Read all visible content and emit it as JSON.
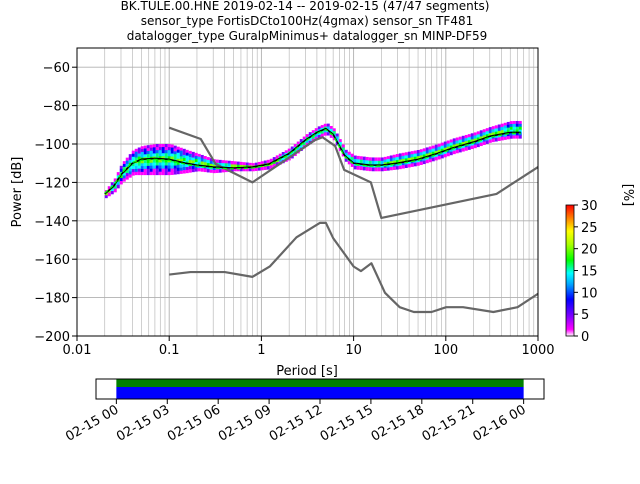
{
  "chart_data": {
    "type": "heatmap",
    "title_lines": [
      "BK.TULE.00.HNE   2019-02-14 -- 2019-02-15  (47/47 segments)",
      "sensor_type FortisDCto100Hz(4gmax) sensor_sn TF481",
      "datalogger_type GuralpMinimus+ datalogger_sn MINP-DF59"
    ],
    "xlabel": "Period [s]",
    "ylabel": "Power [dB]",
    "xscale": "log",
    "xlim": [
      0.01,
      1000
    ],
    "ylim": [
      -200,
      -50
    ],
    "xticks": [
      {
        "value": 0.01,
        "label": "0.01"
      },
      {
        "value": 0.1,
        "label": "0.1"
      },
      {
        "value": 1,
        "label": "1"
      },
      {
        "value": 10,
        "label": "10"
      },
      {
        "value": 100,
        "label": "100"
      },
      {
        "value": 1000,
        "label": "1000"
      }
    ],
    "yticks": [
      {
        "value": -60,
        "label": "−60"
      },
      {
        "value": -80,
        "label": "−80"
      },
      {
        "value": -100,
        "label": "−100"
      },
      {
        "value": -120,
        "label": "−120"
      },
      {
        "value": -140,
        "label": "−140"
      },
      {
        "value": -160,
        "label": "−160"
      },
      {
        "value": -180,
        "label": "−180"
      },
      {
        "value": -200,
        "label": "−200"
      }
    ],
    "grid": true,
    "colorbar": {
      "label": "[%]",
      "min": 0,
      "max": 30,
      "ticks": [
        {
          "value": 0,
          "label": "0"
        },
        {
          "value": 5,
          "label": "5"
        },
        {
          "value": 10,
          "label": "10"
        },
        {
          "value": 15,
          "label": "15"
        },
        {
          "value": 20,
          "label": "20"
        },
        {
          "value": 25,
          "label": "25"
        },
        {
          "value": 30,
          "label": "30"
        }
      ]
    },
    "series": [
      {
        "style": "noise-model",
        "color": "#666666",
        "x": [
          0.1,
          0.22,
          0.32,
          0.8,
          3.8,
          4.6,
          6.3,
          7.9,
          15.4,
          20,
          354.8,
          1000
        ],
        "y": [
          -91.5,
          -97.4,
          -110.5,
          -120,
          -98,
          -96.5,
          -101,
          -113.5,
          -120,
          -138.5,
          -126,
          -112
        ]
      },
      {
        "style": "noise-model",
        "color": "#666666",
        "x": [
          0.1,
          0.17,
          0.4,
          0.8,
          1.24,
          2.4,
          4.3,
          5,
          6,
          10,
          12,
          15.6,
          21.9,
          31.6,
          45,
          70,
          101,
          154,
          328,
          600,
          1000
        ],
        "y": [
          -168,
          -166.7,
          -166.7,
          -169.2,
          -163.7,
          -148.6,
          -141.1,
          -141.1,
          -149,
          -163.8,
          -166.2,
          -162.1,
          -177.5,
          -185,
          -187.5,
          -187.5,
          -185,
          -185,
          -187.5,
          -185,
          -178
        ]
      },
      {
        "style": "median",
        "color": "#000000",
        "x": [
          0.02,
          0.025,
          0.03,
          0.04,
          0.05,
          0.07,
          0.1,
          0.15,
          0.2,
          0.3,
          0.5,
          0.8,
          1.2,
          2,
          3,
          4,
          5,
          6,
          7,
          8,
          10,
          15,
          20,
          30,
          50,
          80,
          120,
          200,
          300,
          500,
          650
        ],
        "y": [
          -126,
          -122,
          -116,
          -110,
          -108,
          -107.5,
          -108,
          -110,
          -111,
          -112,
          -112.5,
          -112,
          -110.5,
          -105,
          -98,
          -94,
          -92,
          -95,
          -101,
          -106,
          -110,
          -111,
          -111,
          -110,
          -108,
          -105,
          -102,
          -99,
          -96,
          -94,
          -94
        ]
      },
      {
        "style": "mean",
        "color": "#00ff00",
        "x": [
          0.02,
          0.025,
          0.03,
          0.04,
          0.05,
          0.07,
          0.1,
          0.15,
          0.2,
          0.3,
          0.5,
          0.8,
          1.2,
          2,
          3,
          4,
          5,
          6,
          7,
          8,
          10,
          15,
          20,
          30,
          50,
          80,
          120,
          200,
          300,
          500,
          650
        ],
        "y": [
          -125.5,
          -121.5,
          -115.5,
          -109.5,
          -108.5,
          -108,
          -108.5,
          -110.5,
          -111.5,
          -112.5,
          -113,
          -112.5,
          -111,
          -105.5,
          -98.5,
          -94.5,
          -92.5,
          -95.5,
          -101.5,
          -106.5,
          -110.5,
          -111.5,
          -111.5,
          -110.5,
          -108.5,
          -105.5,
          -102.5,
          -99.5,
          -96.5,
          -94.5,
          -94.5
        ]
      }
    ],
    "density_band": {
      "x": [
        0.02,
        0.025,
        0.03,
        0.04,
        0.05,
        0.07,
        0.1,
        0.15,
        0.2,
        0.3,
        0.5,
        0.8,
        1.2,
        2,
        3,
        4,
        5,
        6,
        7,
        8,
        10,
        15,
        20,
        30,
        50,
        80,
        120,
        200,
        300,
        500,
        650
      ],
      "low": [
        -128,
        -125,
        -120,
        -116,
        -116,
        -116,
        -116,
        -115,
        -114,
        -115,
        -114,
        -114,
        -113,
        -108,
        -101,
        -97,
        -95,
        -98,
        -104,
        -109,
        -113,
        -114,
        -114,
        -113,
        -111,
        -108,
        -105,
        -102,
        -99,
        -97,
        -97
      ],
      "high": [
        -124,
        -118,
        -110,
        -103,
        -101,
        -100,
        -100,
        -103,
        -105,
        -108,
        -109,
        -110,
        -108,
        -102,
        -95,
        -91,
        -89,
        -92,
        -98,
        -103,
        -106,
        -107,
        -107,
        -105,
        -103,
        -100,
        -97,
        -94,
        -91,
        -88,
        -88
      ]
    },
    "coverage": {
      "tick_labels": [
        "02-15 00",
        "02-15 03",
        "02-15 06",
        "02-15 09",
        "02-15 12",
        "02-15 15",
        "02-15 18",
        "02-15 21",
        "02-16 00"
      ],
      "tick_hours": [
        0,
        3,
        6,
        9,
        12,
        15,
        18,
        21,
        24
      ],
      "range_hours": [
        -1.2,
        25.2
      ],
      "data_hours": [
        0,
        24
      ],
      "colors": {
        "used": "#008000",
        "available": "#0000ff"
      }
    }
  }
}
